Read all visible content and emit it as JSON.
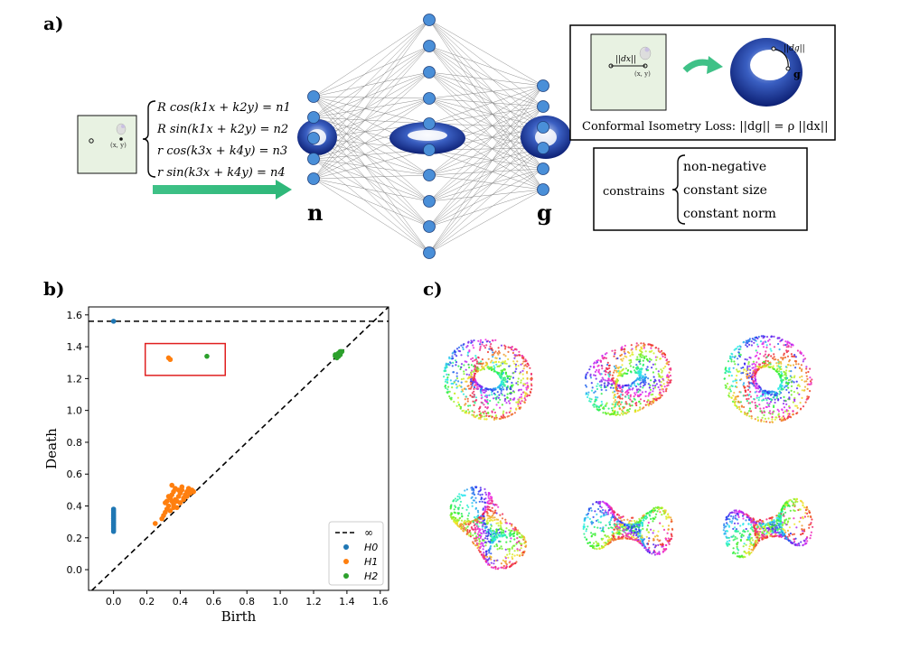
{
  "panel_labels": {
    "a": "a)",
    "b": "b)",
    "c": "c)"
  },
  "panel_a": {
    "equations": [
      "R cos(k1x + k2y) = n1",
      "R sin(k1x + k2y) = n2",
      "r cos(k3x + k4y) = n3",
      "r sin(k3x + k4y) = n4"
    ],
    "input_point_label": "(x, y)",
    "layer_label_n": "n",
    "layer_label_g": "g",
    "loss_box": {
      "dx_label": "||dx||",
      "point_label": "(x, y)",
      "dg_label": "||dg||",
      "g_label": "g",
      "caption": "Conformal Isometry Loss: ||dg|| = ρ ||dx||"
    },
    "constraints_box": {
      "prefix": "constrains",
      "items": [
        "non-negative",
        "constant size",
        "constant norm"
      ]
    }
  },
  "chart_data": {
    "type": "scatter",
    "title": "",
    "xlabel": "Birth",
    "ylabel": "Death",
    "xlim": [
      -0.15,
      1.65
    ],
    "ylim": [
      -0.13,
      1.65
    ],
    "xticks": [
      "0.0",
      "0.2",
      "0.4",
      "0.6",
      "0.8",
      "1.0",
      "1.2",
      "1.4",
      "1.6"
    ],
    "yticks": [
      "0.0",
      "0.2",
      "0.4",
      "0.6",
      "0.8",
      "1.0",
      "1.2",
      "1.4",
      "1.6"
    ],
    "infinity_line": 1.56,
    "legend_position": "bottom-right",
    "legend": [
      {
        "label": "∞",
        "kind": "dashed-line"
      },
      {
        "label": "H0",
        "kind": "marker"
      },
      {
        "label": "H1",
        "kind": "marker"
      },
      {
        "label": "H2",
        "kind": "marker"
      }
    ],
    "series": [
      {
        "name": "H0",
        "color": "#1f77b4",
        "points": [
          [
            0.0,
            1.56
          ],
          [
            0.0,
            0.24
          ],
          [
            0.0,
            0.25
          ],
          [
            0.0,
            0.26
          ],
          [
            0.0,
            0.27
          ],
          [
            0.0,
            0.28
          ],
          [
            0.0,
            0.29
          ],
          [
            0.0,
            0.3
          ],
          [
            0.0,
            0.31
          ],
          [
            0.0,
            0.32
          ],
          [
            0.0,
            0.33
          ],
          [
            0.0,
            0.34
          ],
          [
            0.0,
            0.35
          ],
          [
            0.0,
            0.36
          ],
          [
            0.0,
            0.37
          ],
          [
            0.0,
            0.38
          ]
        ]
      },
      {
        "name": "H1",
        "color": "#ff7f0e",
        "points": [
          [
            0.33,
            1.33
          ],
          [
            0.34,
            1.32
          ],
          [
            0.25,
            0.29
          ],
          [
            0.29,
            0.32
          ],
          [
            0.3,
            0.34
          ],
          [
            0.31,
            0.36
          ],
          [
            0.32,
            0.38
          ],
          [
            0.33,
            0.4
          ],
          [
            0.32,
            0.43
          ],
          [
            0.34,
            0.45
          ],
          [
            0.35,
            0.47
          ],
          [
            0.36,
            0.49
          ],
          [
            0.37,
            0.51
          ],
          [
            0.35,
            0.53
          ],
          [
            0.36,
            0.41
          ],
          [
            0.38,
            0.43
          ],
          [
            0.39,
            0.46
          ],
          [
            0.4,
            0.48
          ],
          [
            0.41,
            0.5
          ],
          [
            0.42,
            0.45
          ],
          [
            0.43,
            0.47
          ],
          [
            0.44,
            0.49
          ],
          [
            0.45,
            0.51
          ],
          [
            0.46,
            0.48
          ],
          [
            0.47,
            0.5
          ],
          [
            0.48,
            0.49
          ],
          [
            0.38,
            0.39
          ],
          [
            0.4,
            0.42
          ],
          [
            0.42,
            0.44
          ],
          [
            0.34,
            0.37
          ],
          [
            0.36,
            0.39
          ],
          [
            0.37,
            0.44
          ],
          [
            0.39,
            0.5
          ],
          [
            0.41,
            0.52
          ],
          [
            0.33,
            0.46
          ],
          [
            0.31,
            0.42
          ],
          [
            0.35,
            0.43
          ],
          [
            0.44,
            0.46
          ],
          [
            0.46,
            0.5
          ]
        ]
      },
      {
        "name": "H2",
        "color": "#2ca02c",
        "points": [
          [
            0.56,
            1.34
          ],
          [
            1.33,
            1.34
          ],
          [
            1.34,
            1.35
          ],
          [
            1.35,
            1.36
          ],
          [
            1.36,
            1.37
          ],
          [
            1.34,
            1.33
          ],
          [
            1.36,
            1.35
          ],
          [
            1.35,
            1.34
          ],
          [
            1.37,
            1.37
          ],
          [
            1.33,
            1.35
          ]
        ]
      }
    ],
    "highlight_box": {
      "x": [
        0.19,
        0.67
      ],
      "y": [
        1.22,
        1.42
      ],
      "color": "#e02020"
    }
  },
  "panel_c": {
    "tori": [
      {
        "view": "front-wide"
      },
      {
        "view": "front-tilted"
      },
      {
        "view": "front-hole"
      },
      {
        "view": "twisted-left"
      },
      {
        "view": "side-pinched"
      },
      {
        "view": "side-pinched-right"
      }
    ]
  }
}
